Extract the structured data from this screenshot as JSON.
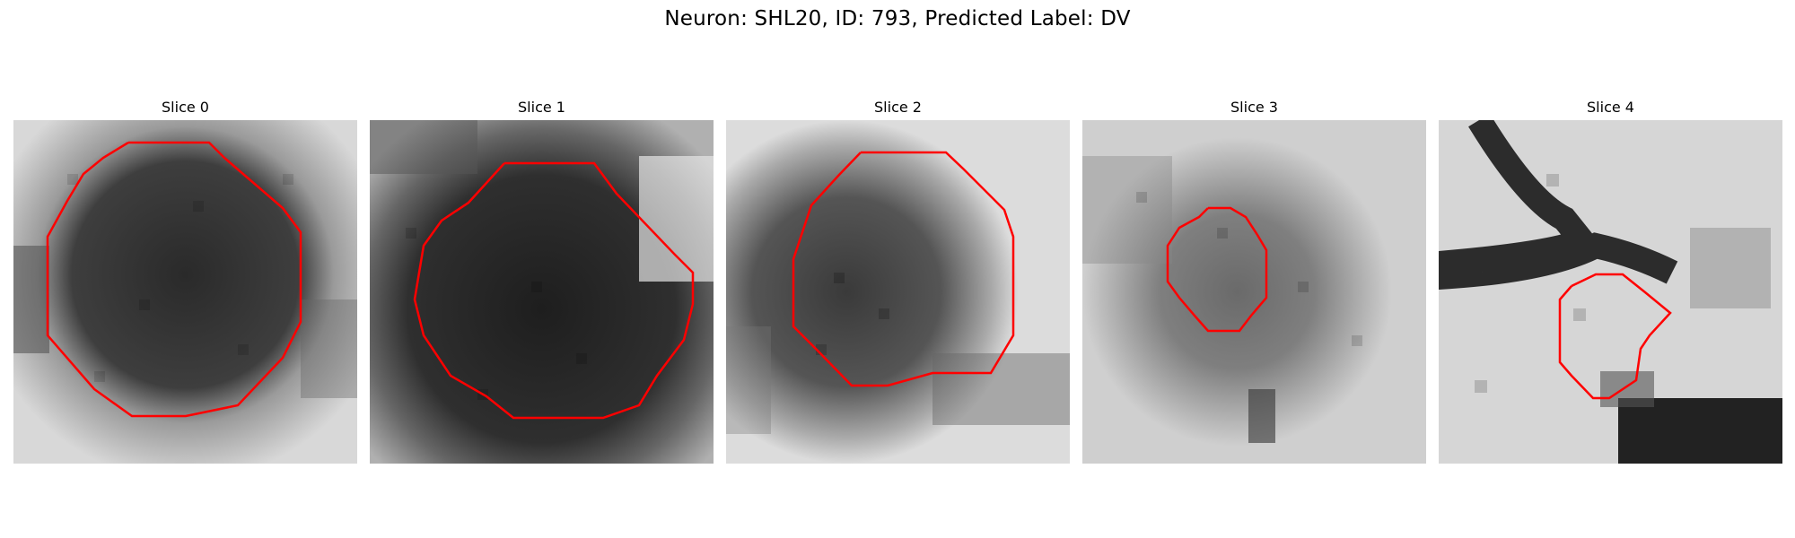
{
  "figure": {
    "title": "Neuron: SHL20, ID: 793, Predicted Label: DV",
    "contour_color": "#ff0000"
  },
  "slices": [
    {
      "title": "Slice 0",
      "density": 0.7
    },
    {
      "title": "Slice 1",
      "density": 0.82
    },
    {
      "title": "Slice 2",
      "density": 0.55
    },
    {
      "title": "Slice 3",
      "density": 0.45
    },
    {
      "title": "Slice 4",
      "density": 0.35
    }
  ]
}
